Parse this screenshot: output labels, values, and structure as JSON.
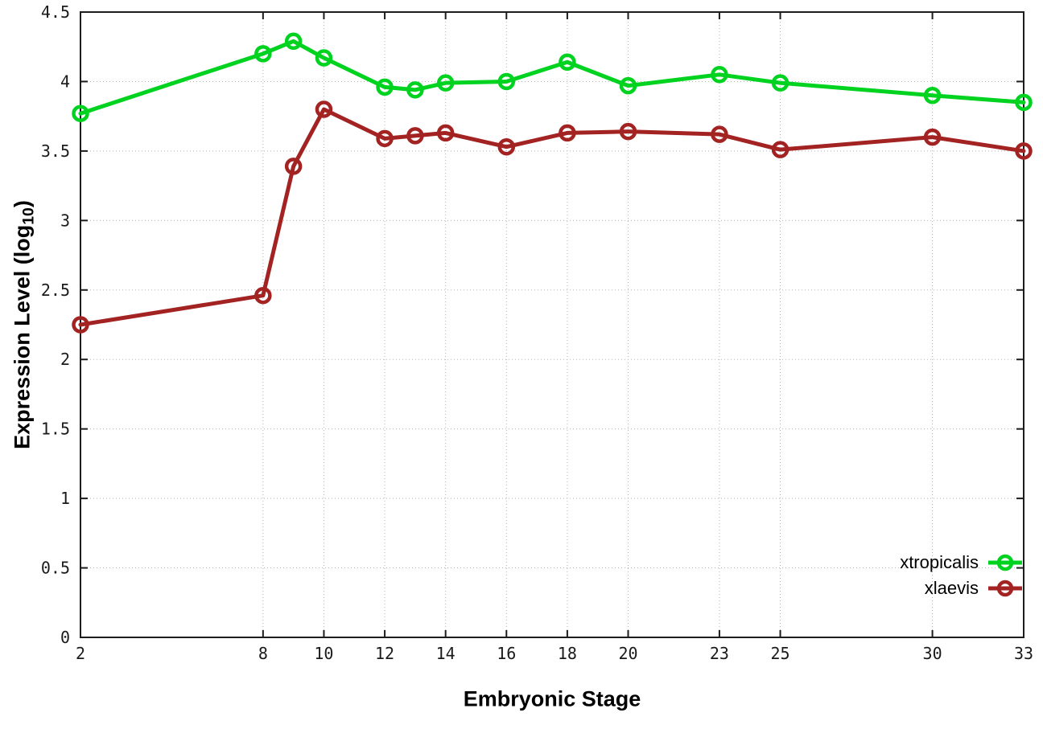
{
  "chart_data": {
    "type": "line",
    "title": "",
    "xlabel": "Embryonic Stage",
    "ylabel": "Expression Level (log10)",
    "ylabel_parts": {
      "prefix": "Expression Level (log",
      "sub": "10",
      "suffix": ")"
    },
    "x": [
      2,
      8,
      9,
      10,
      12,
      13,
      14,
      16,
      18,
      20,
      23,
      25,
      30,
      33
    ],
    "series": [
      {
        "name": "xtropicalis",
        "color": "#00d220",
        "values": [
          3.77,
          4.2,
          4.29,
          4.17,
          3.96,
          3.94,
          3.99,
          4.0,
          4.14,
          3.97,
          4.05,
          3.99,
          3.9,
          3.85
        ]
      },
      {
        "name": "xlaevis",
        "color": "#a32222",
        "values": [
          2.25,
          2.46,
          3.39,
          3.8,
          3.59,
          3.61,
          3.63,
          3.53,
          3.63,
          3.64,
          3.62,
          3.51,
          3.6,
          3.5
        ]
      }
    ],
    "xlim": [
      2,
      33
    ],
    "ylim": [
      0,
      4.5
    ],
    "xticks": {
      "values": [
        2,
        8,
        10,
        12,
        14,
        16,
        18,
        20,
        23,
        25,
        30,
        33
      ],
      "labels": [
        "2",
        "8",
        "10",
        "12",
        "14",
        "16",
        "18",
        "20",
        "23",
        "25",
        "30",
        "33"
      ]
    },
    "yticks": {
      "values": [
        0,
        0.5,
        1,
        1.5,
        2,
        2.5,
        3,
        3.5,
        4,
        4.5
      ],
      "labels": [
        "0",
        "0.5",
        "1",
        "1.5",
        "2",
        "2.5",
        "3",
        "3.5",
        "4",
        "4.5"
      ]
    },
    "grid": true,
    "grid_style": "dotted",
    "legend_position": "bottom-right-inside",
    "marker": "open-circle",
    "colors": {
      "background": "#ffffff",
      "axis": "#1c1c1c",
      "grid": "#b5b5b5",
      "tick_label": "#1a1a1a"
    }
  }
}
